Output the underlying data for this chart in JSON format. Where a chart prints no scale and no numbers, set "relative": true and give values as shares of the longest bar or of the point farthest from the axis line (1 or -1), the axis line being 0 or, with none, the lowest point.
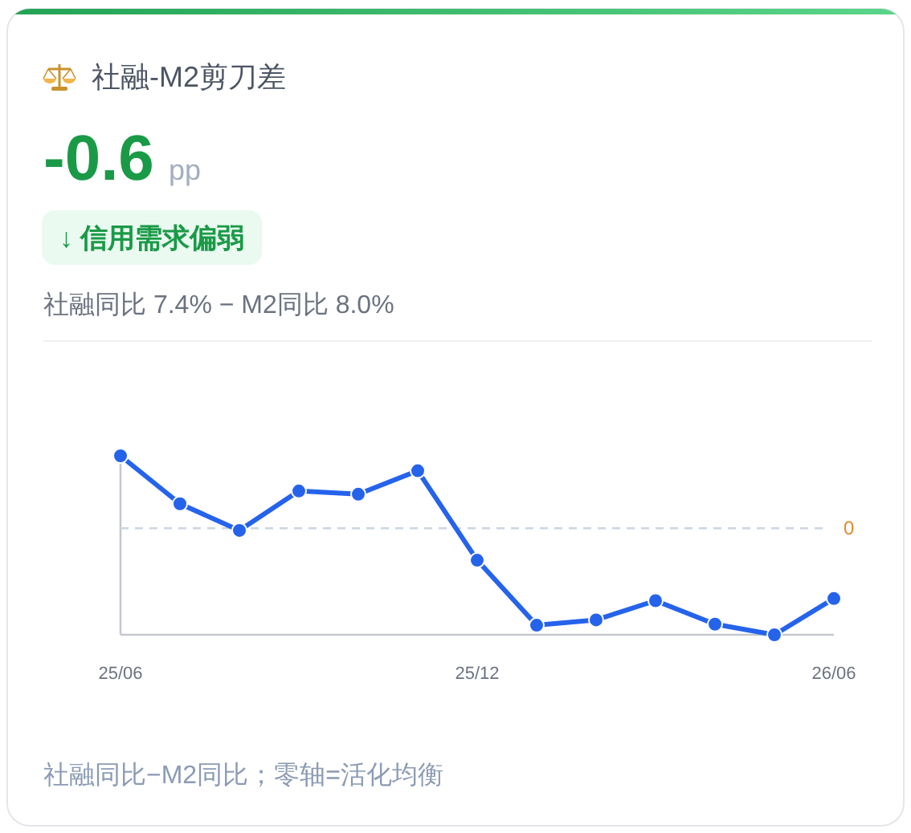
{
  "chart_data": {
    "type": "line",
    "title": "社融-M2剪刀差",
    "annotations": [
      "-0.6",
      "pp",
      "↓ 信用需求偏弱",
      "社融同比 7.4% − M2同比 8.0%",
      "社融同比−M2同比；零轴=活化均衡"
    ],
    "categories": [
      "25/06",
      null,
      null,
      null,
      null,
      null,
      "25/12",
      null,
      null,
      null,
      null,
      null,
      "26/06"
    ],
    "values": [
      0.68,
      0.23,
      -0.02,
      0.35,
      0.32,
      0.54,
      -0.3,
      -0.91,
      -0.86,
      -0.68,
      -0.9,
      -1,
      -0.66
    ],
    "color": "#2563eb",
    "relative": true,
    "marker": "circle",
    "line_style": "solid",
    "ref_lines": [
      {
        "axis": "y",
        "value": 0,
        "label": "0",
        "color": "#cbd5e1",
        "line_style": "dashed"
      }
    ]
  }
}
